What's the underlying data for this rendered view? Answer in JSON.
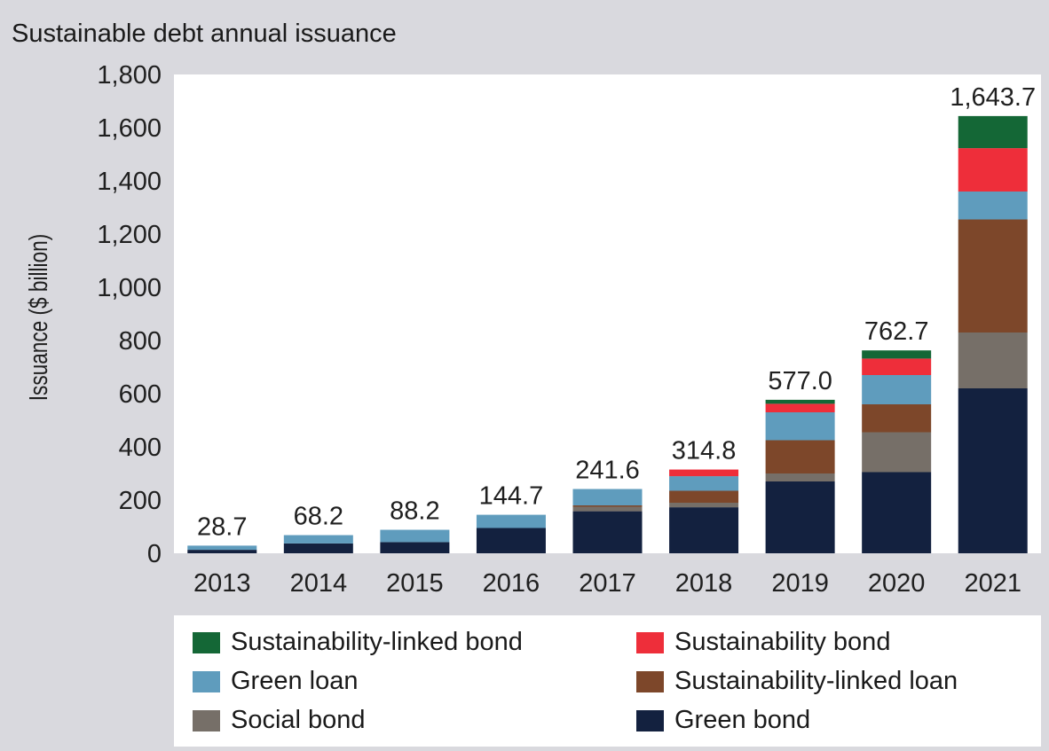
{
  "chart_data": {
    "type": "bar",
    "stacked": true,
    "title": "Sustainable debt annual issuance",
    "ylabel": "Issuance ($ billion)",
    "xlabel": "",
    "ylim": [
      0,
      1800
    ],
    "y_ticks": [
      0,
      200,
      400,
      600,
      800,
      1000,
      1200,
      1400,
      1600,
      1800
    ],
    "y_tick_labels": [
      "0",
      "200",
      "400",
      "600",
      "800",
      "1,000",
      "1,200",
      "1,400",
      "1,600",
      "1,800"
    ],
    "grid": false,
    "legend_position": "bottom",
    "categories": [
      "2013",
      "2014",
      "2015",
      "2016",
      "2017",
      "2018",
      "2019",
      "2020",
      "2021"
    ],
    "totals": [
      "28.7",
      "68.2",
      "88.2",
      "144.7",
      "241.6",
      "314.8",
      "577.0",
      "762.7",
      "1,643.7"
    ],
    "series": [
      {
        "name": "Green bond",
        "color": "#13213f",
        "values": [
          13,
          37,
          42,
          95,
          158,
          173,
          270,
          305,
          620
        ]
      },
      {
        "name": "Social bond",
        "color": "#766f68",
        "values": [
          0,
          0,
          0,
          0,
          17,
          17,
          30,
          150,
          210
        ]
      },
      {
        "name": "Sustainability-linked loan",
        "color": "#7d472a",
        "values": [
          0,
          0,
          0,
          0,
          5,
          45,
          125,
          105,
          425
        ]
      },
      {
        "name": "Green loan",
        "color": "#5f9cbd",
        "values": [
          15.7,
          31.2,
          46.2,
          49.7,
          61.6,
          54.8,
          105,
          110,
          105
        ]
      },
      {
        "name": "Sustainability bond",
        "color": "#ee2e3a",
        "values": [
          0,
          0,
          0,
          0,
          0,
          25,
          32,
          62,
          163
        ]
      },
      {
        "name": "Sustainability-linked bond",
        "color": "#146736",
        "values": [
          0,
          0,
          0,
          0,
          0,
          0,
          15,
          30.7,
          120.7
        ]
      }
    ]
  },
  "legend": {
    "items": [
      {
        "label": "Sustainability-linked bond",
        "color": "#146736"
      },
      {
        "label": "Sustainability bond",
        "color": "#ee2e3a"
      },
      {
        "label": "Green loan",
        "color": "#5f9cbd"
      },
      {
        "label": "Sustainability-linked loan",
        "color": "#7d472a"
      },
      {
        "label": "Social bond",
        "color": "#766f68"
      },
      {
        "label": "Green bond",
        "color": "#13213f"
      }
    ]
  }
}
